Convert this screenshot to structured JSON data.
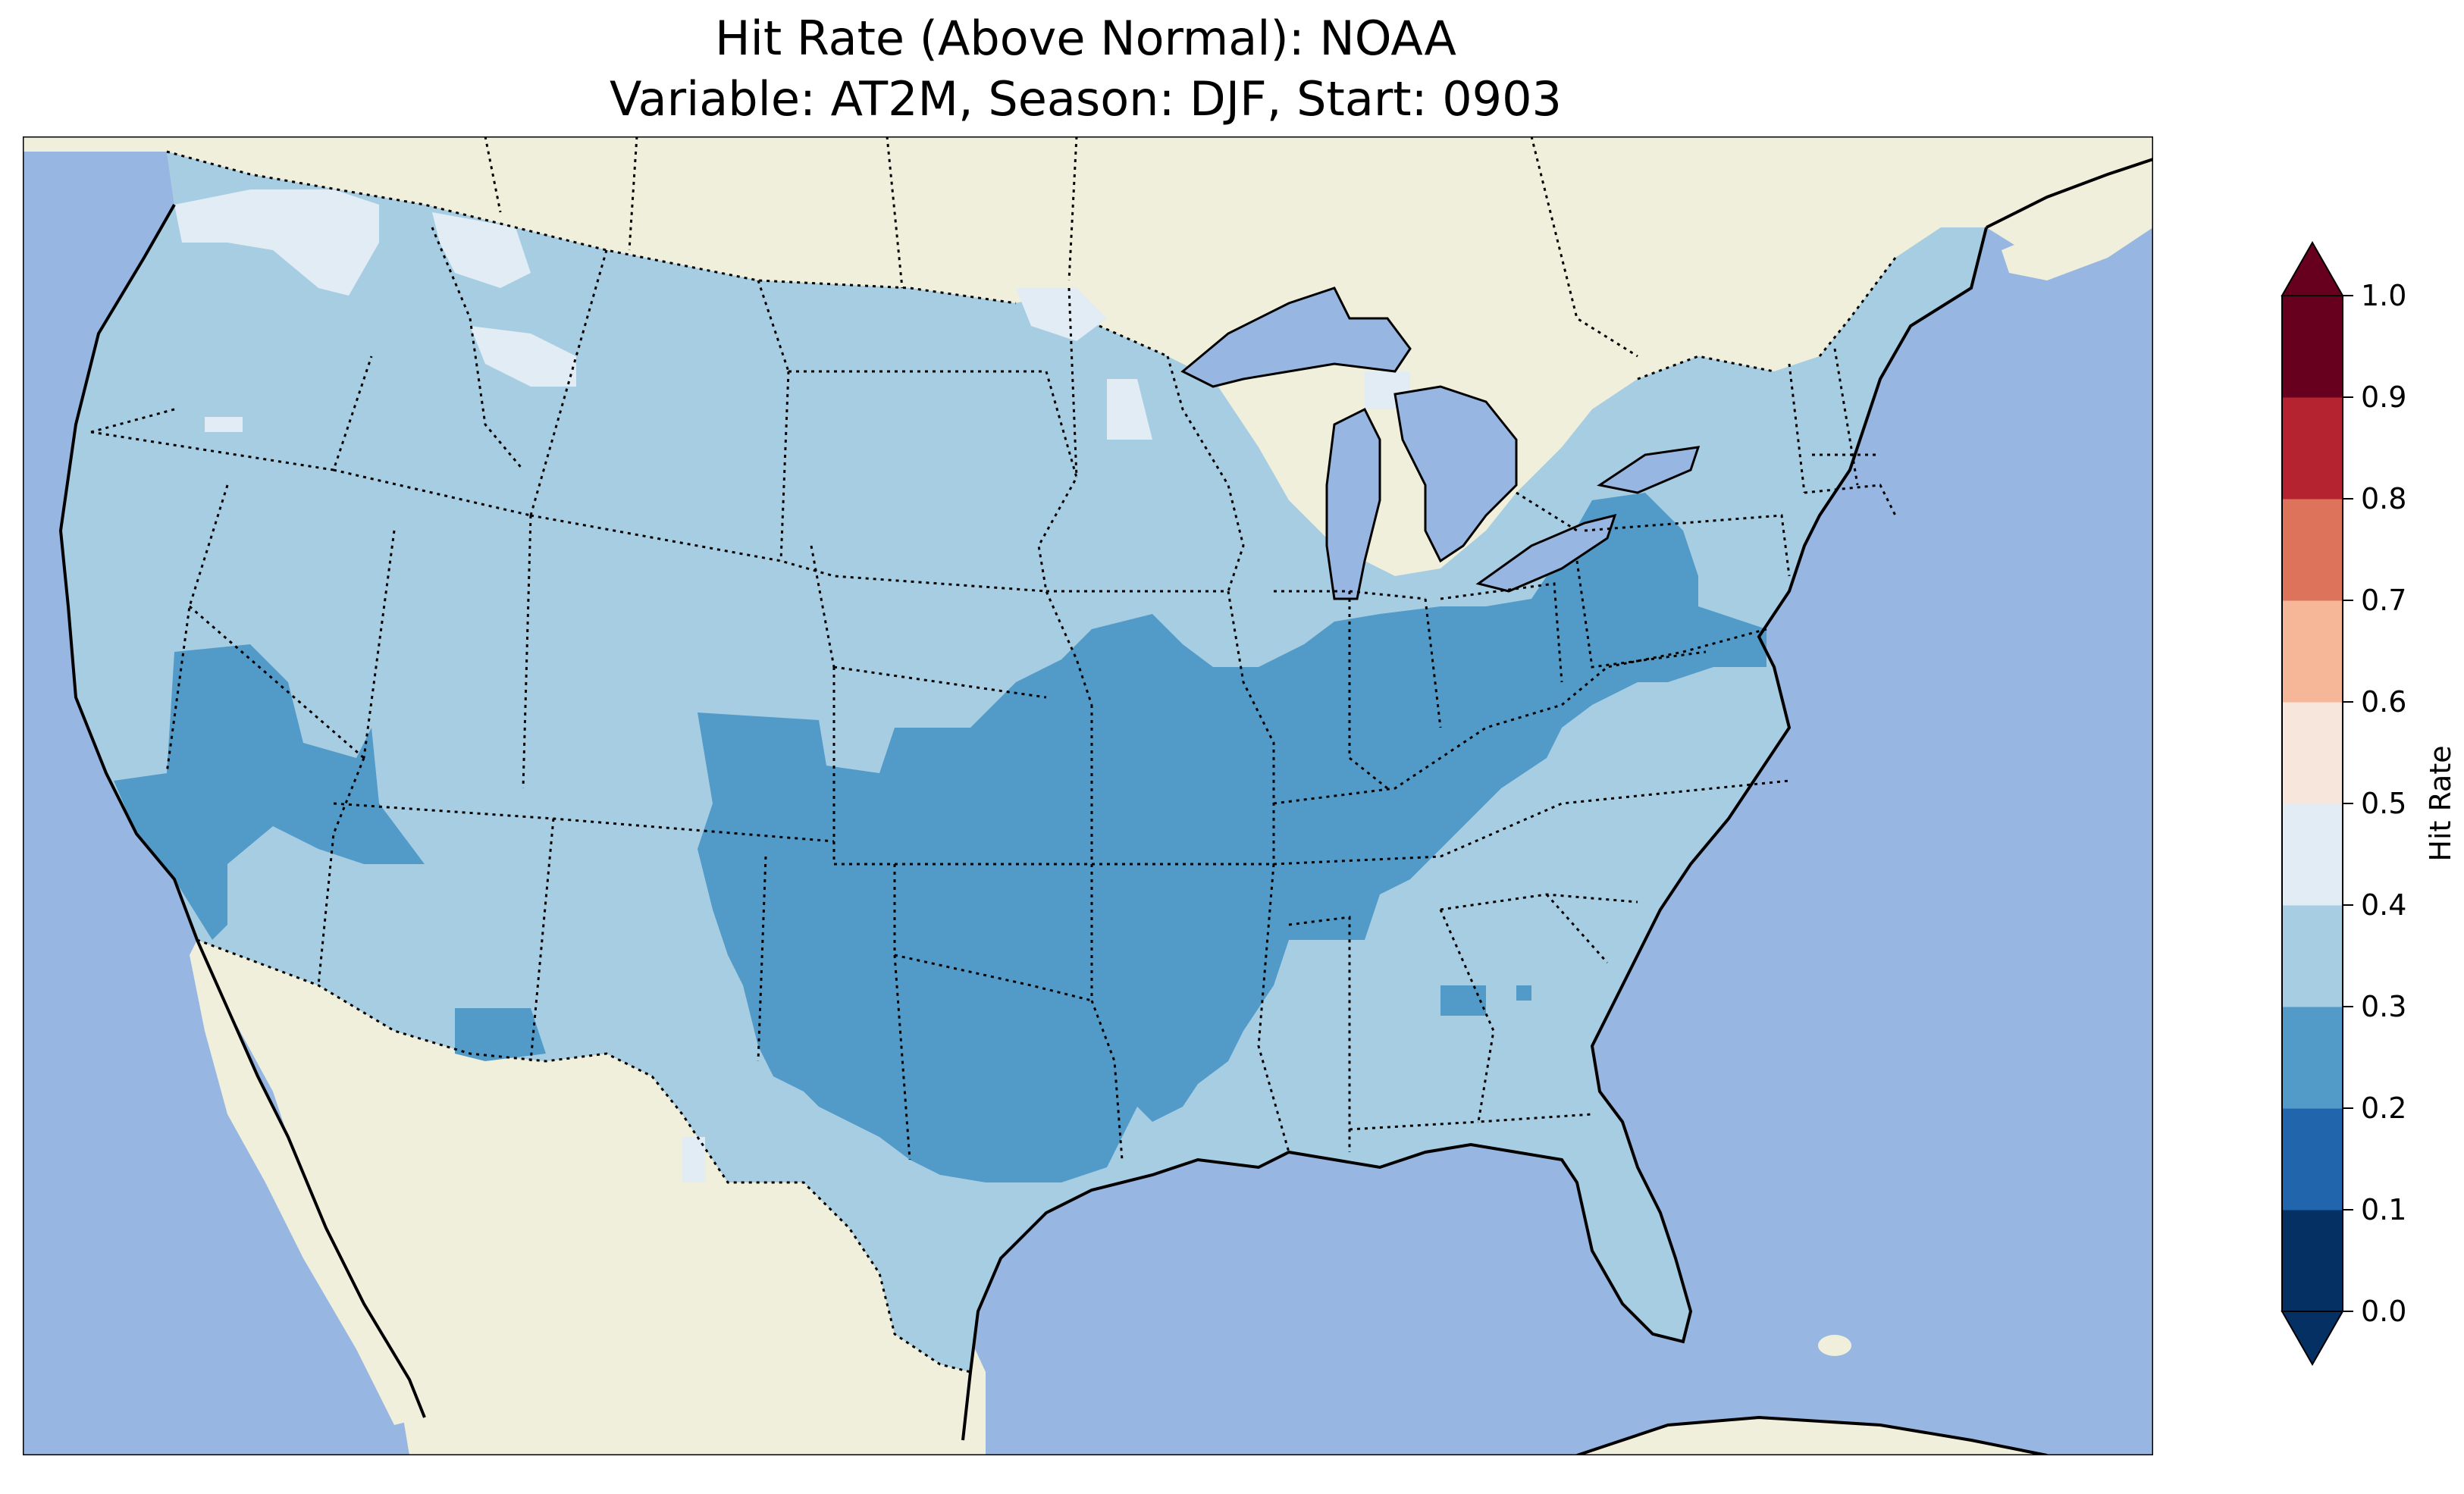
{
  "figure": {
    "title_line1": "Hit Rate (Above Normal): NOAA",
    "title_line2": "Variable: AT2M, Season: DJF, Start: 0903"
  },
  "map": {
    "ocean_color": "#97b6e1",
    "land_color": "#efefdb",
    "lake_color": "#97b6e1",
    "region": "Contiguous United States with parts of Canada, Mexico and the Caribbean",
    "dominant_categories": [
      "0.3-0.4 (most of the country)",
      "0.2-0.3 (central and southern plains, Ohio Valley, Pennsylvania)",
      "0.4-0.5 (patches in the northwest and north)"
    ]
  },
  "colorbar": {
    "label": "Hit Rate",
    "ticks": [
      "0.0",
      "0.1",
      "0.2",
      "0.3",
      "0.4",
      "0.5",
      "0.6",
      "0.7",
      "0.8",
      "0.9",
      "1.0"
    ],
    "colors": [
      "#053061",
      "#2166ac",
      "#4393c3",
      "#92c5de",
      "#d1e5f0",
      "#f7f7f7",
      "#fddbc7",
      "#f4a582",
      "#d6604d",
      "#b2182b",
      "#67001f"
    ],
    "shading_colors": [
      "#043063",
      "#2166ac",
      "#529bc8",
      "#a7cde3",
      "#e1ecf4",
      "#f7e6dc",
      "#f6b798",
      "#de735b",
      "#b52331",
      "#67001f"
    ],
    "extend": "both"
  },
  "chart_data": {
    "type": "heatmap",
    "title": "Hit Rate (Above Normal): NOAA",
    "subtitle": "Variable: AT2M, Season: DJF, Start: 0903",
    "colorbar_label": "Hit Rate",
    "range": [
      0.0,
      1.0
    ],
    "levels": [
      0.0,
      0.1,
      0.2,
      0.3,
      0.4,
      0.5,
      0.6,
      0.7,
      0.8,
      0.9,
      1.0
    ]
  }
}
